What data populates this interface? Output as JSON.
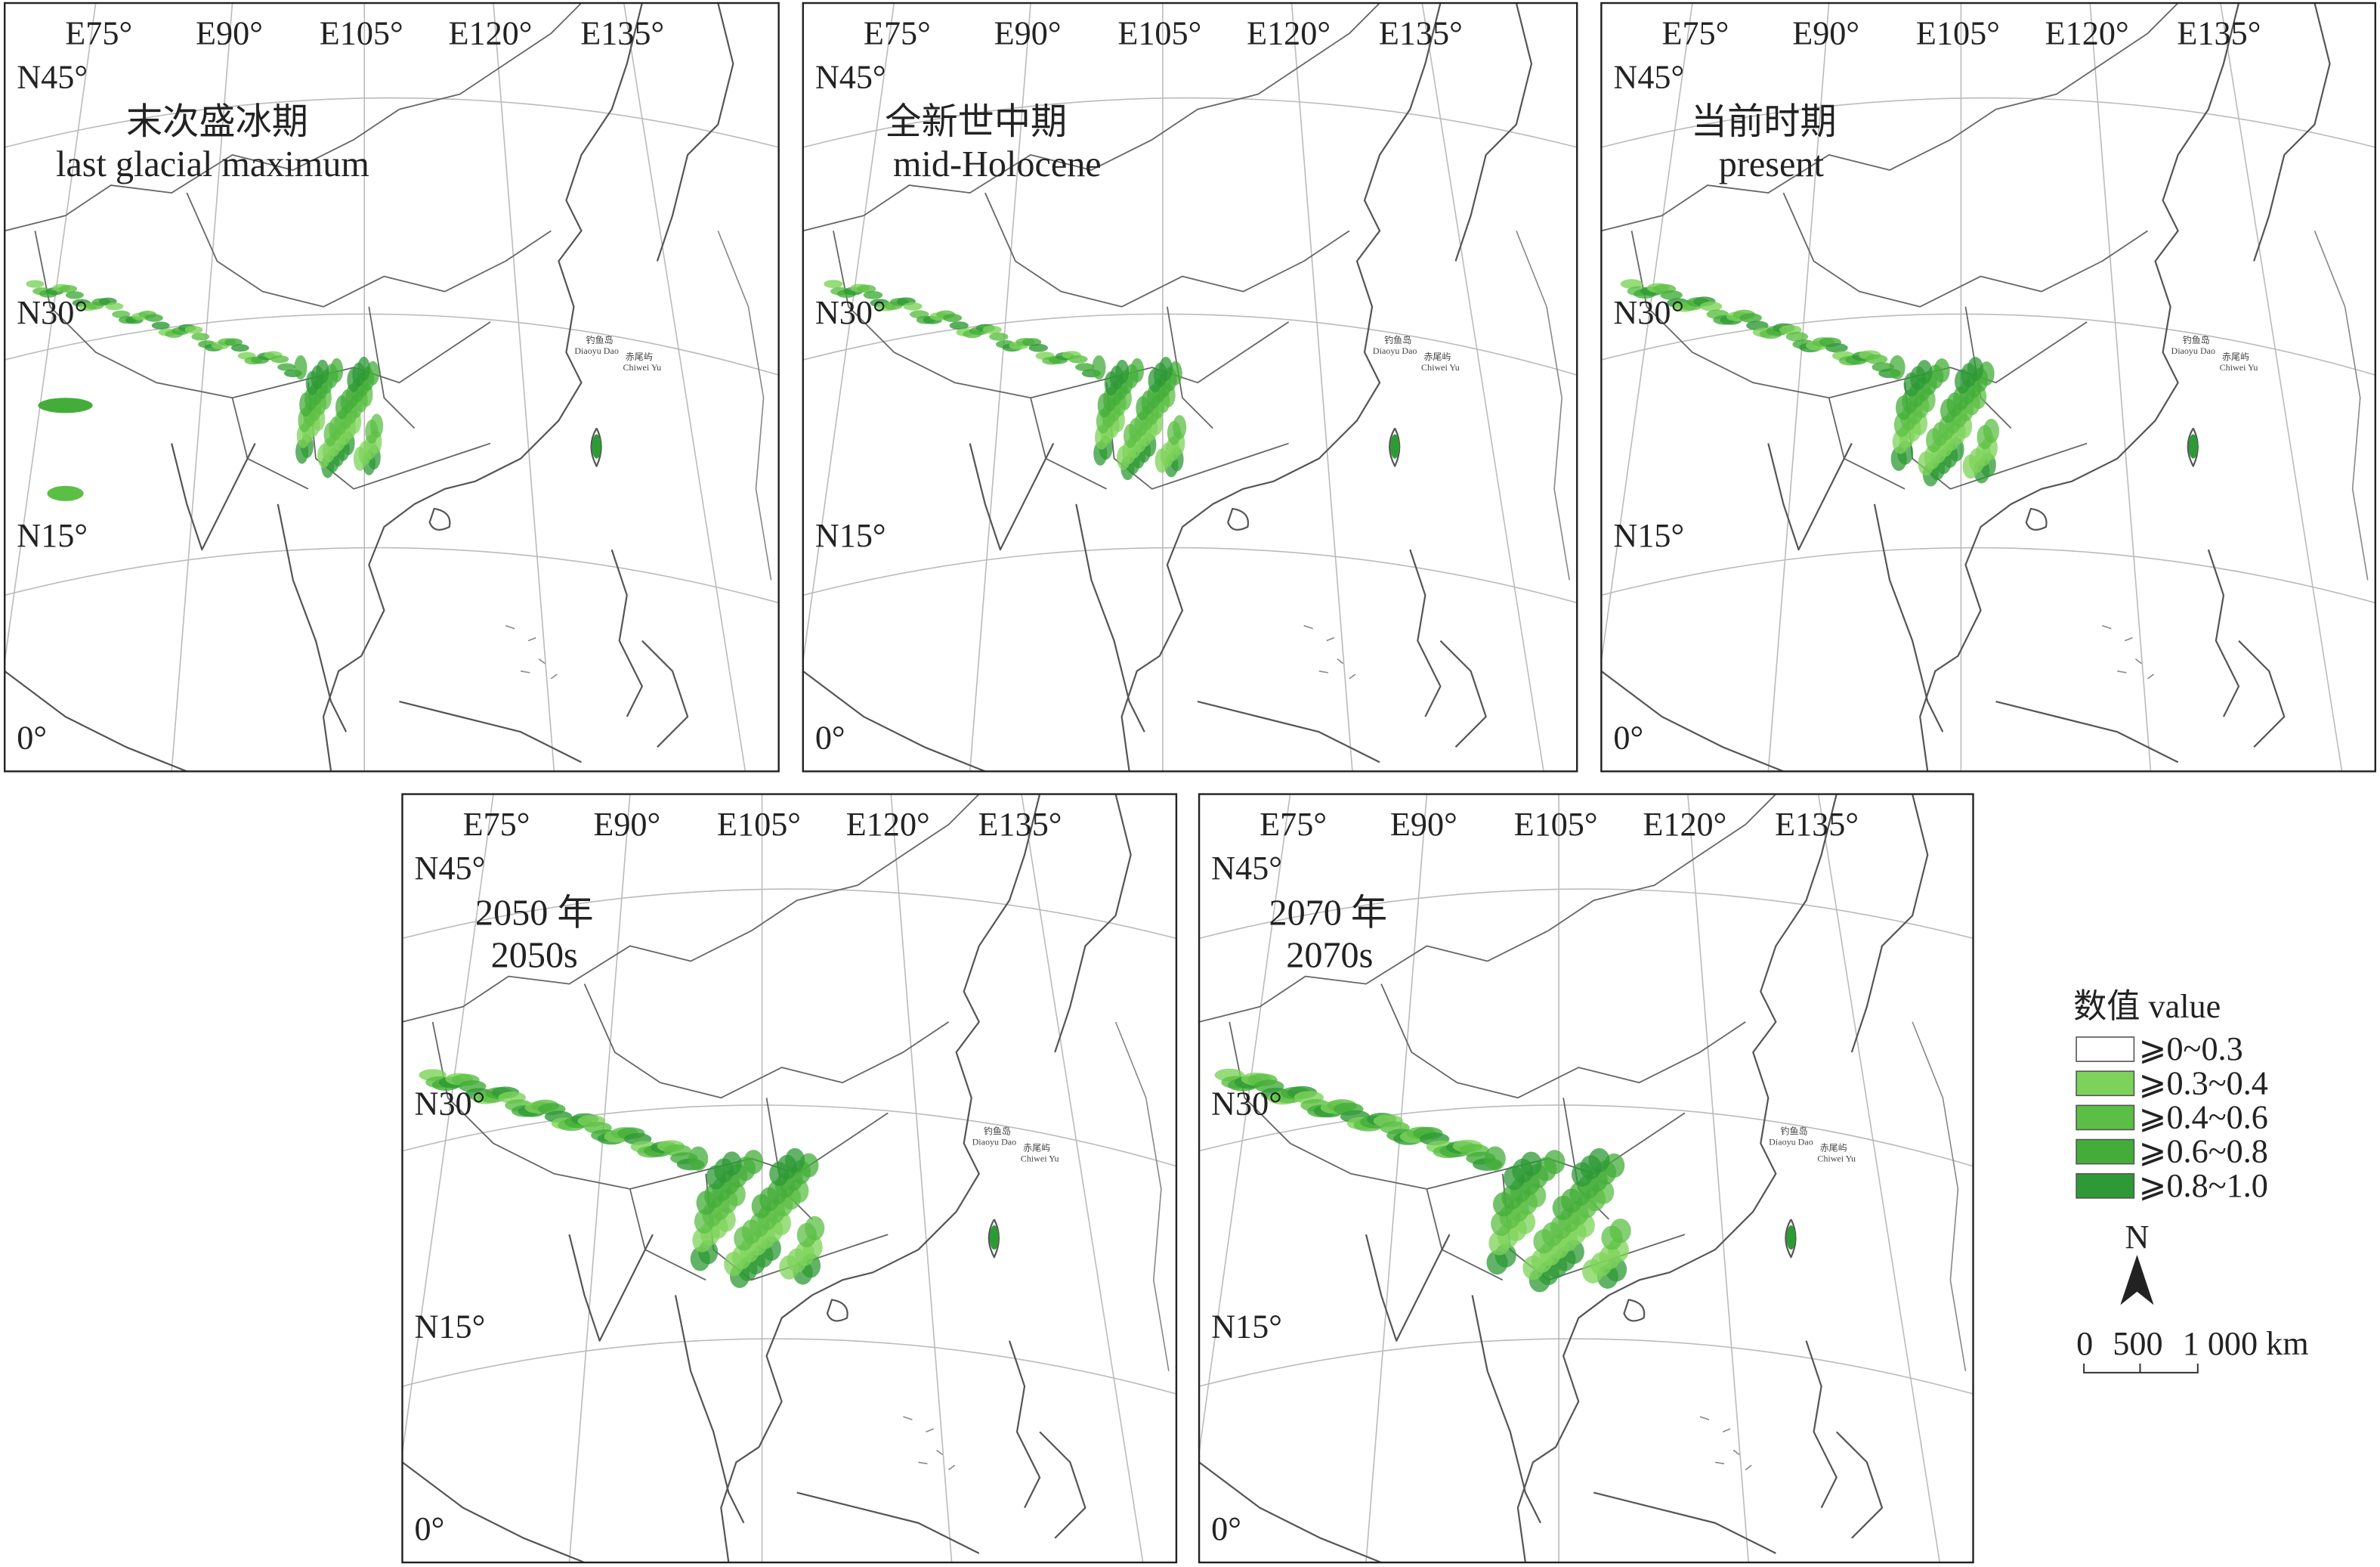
{
  "panels": [
    {
      "title_zh": "末次盛冰期",
      "title_en": "last glacial maximum",
      "lon_labels": [
        "E75°",
        "E90°",
        "E105°",
        "E120°",
        "E135°"
      ],
      "lat_labels": [
        "N45°",
        "N30°",
        "N15°",
        "0°"
      ],
      "islands": [
        "钓鱼岛",
        "Diaoyu Dao",
        "赤尾屿",
        "Chiwei Yu"
      ]
    },
    {
      "title_zh": "全新世中期",
      "title_en": "mid-Holocene",
      "lon_labels": [
        "E75°",
        "E90°",
        "E105°",
        "E120°",
        "E135°"
      ],
      "lat_labels": [
        "N45°",
        "N30°",
        "N15°",
        "0°"
      ],
      "islands": [
        "钓鱼岛",
        "Diaoyu Dao",
        "赤尾屿",
        "Chiwei Yu"
      ]
    },
    {
      "title_zh": "当前时期",
      "title_en": "present",
      "lon_labels": [
        "E75°",
        "E90°",
        "E105°",
        "E120°",
        "E135°"
      ],
      "lat_labels": [
        "N45°",
        "N30°",
        "N15°",
        "0°"
      ],
      "islands": [
        "钓鱼岛",
        "Diaoyu Dao",
        "赤尾屿",
        "Chiwei Yu"
      ]
    },
    {
      "title_zh": "2050 年",
      "title_en": "2050s",
      "lon_labels": [
        "E75°",
        "E90°",
        "E105°",
        "E120°",
        "E135°"
      ],
      "lat_labels": [
        "N45°",
        "N30°",
        "N15°",
        "0°"
      ],
      "islands": [
        "钓鱼岛",
        "Diaoyu Dao",
        "赤尾屿",
        "Chiwei Yu"
      ]
    },
    {
      "title_zh": "2070 年",
      "title_en": "2070s",
      "lon_labels": [
        "E75°",
        "E90°",
        "E105°",
        "E120°",
        "E135°"
      ],
      "lat_labels": [
        "N45°",
        "N30°",
        "N15°",
        "0°"
      ],
      "islands": [
        "钓鱼岛",
        "Diaoyu Dao",
        "赤尾屿",
        "Chiwei Yu"
      ]
    }
  ],
  "legend": {
    "title": "数值 value",
    "items": [
      {
        "label": "⩾0~0.3",
        "color": "#ffffff"
      },
      {
        "label": "⩾0.3~0.4",
        "color": "#7dd35a"
      },
      {
        "label": "⩾0.4~0.6",
        "color": "#5cbf45"
      },
      {
        "label": "⩾0.6~0.8",
        "color": "#44ad3a"
      },
      {
        "label": "⩾0.8~1.0",
        "color": "#2e9a36"
      }
    ],
    "north": "N",
    "scale": [
      "0",
      "500",
      "1 000 km"
    ]
  }
}
